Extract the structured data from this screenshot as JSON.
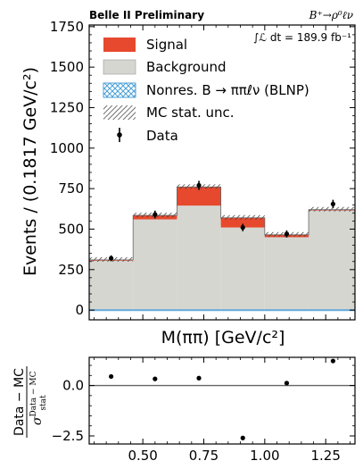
{
  "header": {
    "experiment": "Belle II Preliminary",
    "process": "B⁺→ρ⁰ℓν",
    "luminosity": "∫ℒ dt = 189.9 fb⁻¹"
  },
  "legend": {
    "signal": "Signal",
    "background": "Background",
    "nonres": "Nonres. B → ππℓν (BLNP)",
    "mcstat": "MC stat. unc.",
    "data": "Data"
  },
  "axes": {
    "ylabel_main": "Events / (0.1817 GeV/c²)",
    "xlabel_main": "M(ππ) [GeV/c²]",
    "ylabel_pull_num": "Data − MC",
    "ylabel_pull_den": "σ",
    "ylabel_pull_den_sup": "Data − MC",
    "ylabel_pull_den_sub": "stat"
  },
  "colors": {
    "signal": "#e6492d",
    "background": "#d6d6d1",
    "nonres": "#4a9fd8",
    "hatch": "#333333",
    "data": "#000000"
  },
  "chart_data": [
    {
      "type": "bar",
      "stacked": true,
      "x_ticks": [
        0.5,
        0.75,
        1.0,
        1.25
      ],
      "xlim": [
        0.28,
        1.37
      ],
      "ylim": [
        -60,
        1760
      ],
      "y_ticks": [
        0,
        250,
        500,
        750,
        1000,
        1250,
        1500,
        1750
      ],
      "bin_edges": [
        0.28,
        0.46,
        0.64,
        0.82,
        1.0,
        1.18,
        1.37
      ],
      "series": [
        {
          "name": "Nonres. B → ππℓν (BLNP)",
          "values": [
            5,
            5,
            5,
            5,
            5,
            5
          ]
        },
        {
          "name": "Background",
          "values": [
            305,
            560,
            645,
            510,
            450,
            615
          ]
        },
        {
          "name": "Signal",
          "values": [
            5,
            25,
            115,
            60,
            15,
            5
          ]
        }
      ],
      "data_points": {
        "name": "Data",
        "x": [
          0.37,
          0.55,
          0.73,
          0.91,
          1.09,
          1.28
        ],
        "y": [
          320,
          590,
          770,
          510,
          470,
          655
        ],
        "err": [
          18,
          24,
          28,
          23,
          22,
          26
        ]
      }
    },
    {
      "type": "scatter",
      "xlim": [
        0.28,
        1.37
      ],
      "ylim": [
        -2.9,
        1.4
      ],
      "y_ticks": [
        -2.5,
        0.0
      ],
      "x_ticks": [
        0.5,
        0.75,
        1.0,
        1.25
      ],
      "x": [
        0.37,
        0.55,
        0.73,
        0.91,
        1.09,
        1.28
      ],
      "y": [
        0.45,
        0.33,
        0.37,
        -2.6,
        0.12,
        1.22
      ],
      "reference_line": 0.0
    }
  ]
}
